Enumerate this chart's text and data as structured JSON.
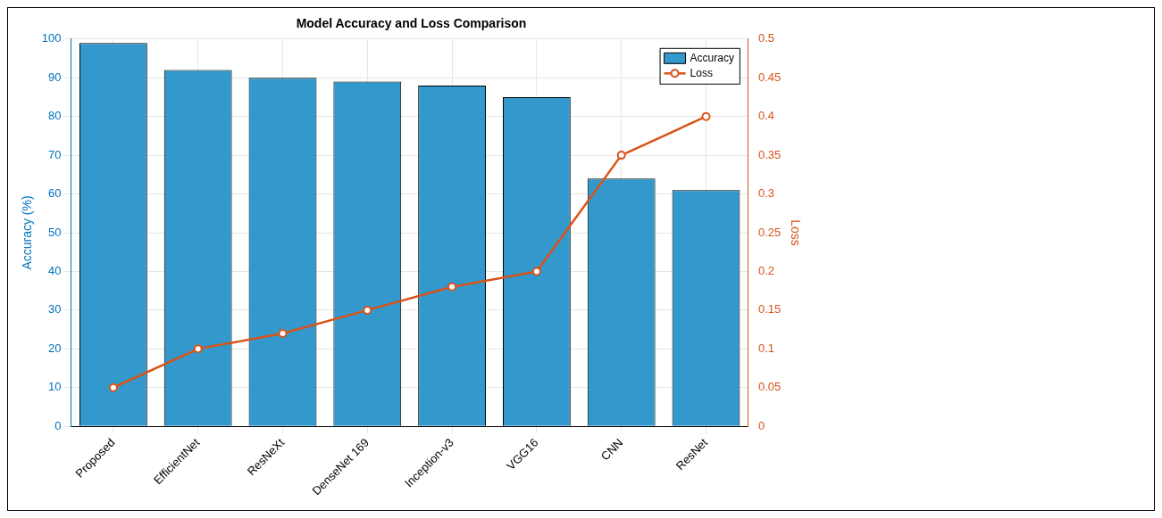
{
  "chart_data": {
    "type": "bar",
    "title": "Model Accuracy and Loss Comparison",
    "ylabel": "Accuracy (%)",
    "y2label": "Loss",
    "categories": [
      "Proposed",
      "EfficientNet",
      "ResNeXt",
      "DenseNet 169",
      "Inception-v3",
      "VGG16",
      "CNN",
      "ResNet"
    ],
    "series": [
      {
        "name": "Accuracy",
        "color": "#3399cc",
        "values": [
          99,
          92,
          90,
          89,
          88,
          85,
          64,
          61
        ]
      },
      {
        "name": "Loss",
        "type": "line",
        "axis": "y2",
        "color": "#d95319",
        "marker": "circle",
        "line_style": "solid",
        "values": [
          0.05,
          0.1,
          0.12,
          0.15,
          0.18,
          0.2,
          0.35,
          0.4
        ]
      }
    ],
    "ylim": [
      0,
      100
    ],
    "yticks": [
      0,
      10,
      20,
      30,
      40,
      50,
      60,
      70,
      80,
      90,
      100
    ],
    "y2lim": [
      0,
      0.5
    ],
    "y2ticks": [
      0,
      0.05,
      0.1,
      0.15,
      0.2,
      0.25,
      0.3,
      0.35,
      0.4,
      0.45,
      0.5
    ],
    "grid": true,
    "legend": "top right"
  }
}
